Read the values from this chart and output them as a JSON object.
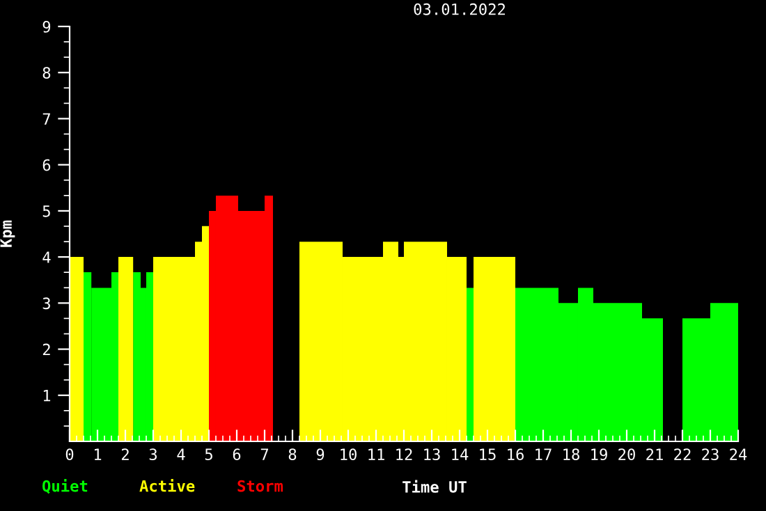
{
  "chart_data": {
    "type": "histogram",
    "title": "03.01.2022",
    "xlabel": "Time UT",
    "ylabel": "Kpm",
    "bins": [
      0,
      0.5,
      0.78,
      1.5,
      1.75,
      2.28,
      2.55,
      2.75,
      3,
      4.5,
      4.75,
      5,
      5.25,
      6.05,
      7,
      7.3,
      8.25,
      9.8,
      11.25,
      11.8,
      12,
      13.55,
      14.25,
      14.5,
      16,
      17.55,
      18.25,
      18.8,
      20.55,
      21.3,
      22,
      23,
      24
    ],
    "series": [
      {
        "name": "Quiet",
        "color": "#00ff00",
        "values": [
          null,
          3.67,
          3.33,
          3.67,
          null,
          3.67,
          3.33,
          3.67,
          null,
          null,
          null,
          null,
          null,
          null,
          null,
          null,
          null,
          null,
          null,
          null,
          null,
          null,
          3.33,
          null,
          3.33,
          3,
          3.33,
          3,
          2.67,
          null,
          2.67,
          3
        ]
      },
      {
        "name": "Active",
        "color": "#ffff00",
        "values": [
          4,
          null,
          null,
          null,
          4,
          null,
          null,
          null,
          4,
          4.33,
          4.67,
          null,
          null,
          null,
          null,
          null,
          4.33,
          4,
          4.33,
          4,
          4.33,
          4,
          null,
          4,
          null,
          null,
          null,
          null,
          null,
          null,
          null,
          null
        ]
      },
      {
        "name": "Storm",
        "color": "#ff0000",
        "values": [
          null,
          null,
          null,
          null,
          null,
          null,
          null,
          null,
          null,
          null,
          null,
          5,
          5.33,
          5,
          5.33,
          null,
          null,
          null,
          null,
          null,
          null,
          null,
          null,
          null,
          null,
          null,
          null,
          null,
          null,
          null,
          null,
          null
        ]
      }
    ],
    "xlim": [
      0,
      24
    ],
    "ylim": [
      0,
      9
    ],
    "xticks": [
      0,
      {
        "value": 0.25,
        "label": null
      },
      {
        "value": 0.5,
        "label": null
      },
      {
        "value": 0.75,
        "label": null
      },
      1,
      {
        "value": 1.25,
        "label": null
      },
      {
        "value": 1.5,
        "label": null
      },
      {
        "value": 1.75,
        "label": null
      },
      2,
      {
        "value": 2.25,
        "label": null
      },
      {
        "value": 2.5,
        "label": null
      },
      {
        "value": 2.75,
        "label": null
      },
      3,
      {
        "value": 3.25,
        "label": null
      },
      {
        "value": 3.5,
        "label": null
      },
      {
        "value": 3.75,
        "label": null
      },
      4,
      {
        "value": 4.25,
        "label": null
      },
      {
        "value": 4.5,
        "label": null
      },
      {
        "value": 4.75,
        "label": null
      },
      5,
      {
        "value": 5.25,
        "label": null
      },
      {
        "value": 5.5,
        "label": null
      },
      {
        "value": 5.75,
        "label": null
      },
      6,
      {
        "value": 6.25,
        "label": null
      },
      {
        "value": 6.5,
        "label": null
      },
      {
        "value": 6.75,
        "label": null
      },
      7,
      {
        "value": 7.25,
        "label": null
      },
      {
        "value": 7.5,
        "label": null
      },
      {
        "value": 7.75,
        "label": null
      },
      8,
      {
        "value": 8.25,
        "label": null
      },
      {
        "value": 8.5,
        "label": null
      },
      {
        "value": 8.75,
        "label": null
      },
      9,
      {
        "value": 9.25,
        "label": null
      },
      {
        "value": 9.5,
        "label": null
      },
      {
        "value": 9.75,
        "label": null
      },
      10,
      {
        "value": 10.25,
        "label": null
      },
      {
        "value": 10.5,
        "label": null
      },
      {
        "value": 10.75,
        "label": null
      },
      11,
      {
        "value": 11.25,
        "label": null
      },
      {
        "value": 11.5,
        "label": null
      },
      {
        "value": 11.75,
        "label": null
      },
      12,
      {
        "value": 12.25,
        "label": null
      },
      {
        "value": 12.5,
        "label": null
      },
      {
        "value": 12.75,
        "label": null
      },
      13,
      {
        "value": 13.25,
        "label": null
      },
      {
        "value": 13.5,
        "label": null
      },
      {
        "value": 13.75,
        "label": null
      },
      14,
      {
        "value": 14.25,
        "label": null
      },
      {
        "value": 14.5,
        "label": null
      },
      {
        "value": 14.75,
        "label": null
      },
      15,
      {
        "value": 15.25,
        "label": null
      },
      {
        "value": 15.5,
        "label": null
      },
      {
        "value": 15.75,
        "label": null
      },
      16,
      {
        "value": 16.25,
        "label": null
      },
      {
        "value": 16.5,
        "label": null
      },
      {
        "value": 16.75,
        "label": null
      },
      17,
      {
        "value": 17.25,
        "label": null
      },
      {
        "value": 17.5,
        "label": null
      },
      {
        "value": 17.75,
        "label": null
      },
      18,
      {
        "value": 18.25,
        "label": null
      },
      {
        "value": 18.5,
        "label": null
      },
      {
        "value": 18.75,
        "label": null
      },
      19,
      {
        "value": 19.25,
        "label": null
      },
      {
        "value": 19.5,
        "label": null
      },
      {
        "value": 19.75,
        "label": null
      },
      20,
      {
        "value": 20.25,
        "label": null
      },
      {
        "value": 20.5,
        "label": null
      },
      {
        "value": 20.75,
        "label": null
      },
      21,
      {
        "value": 21.25,
        "label": null
      },
      {
        "value": 21.5,
        "label": null
      },
      {
        "value": 21.75,
        "label": null
      },
      22,
      {
        "value": 22.25,
        "label": null
      },
      {
        "value": 22.5,
        "label": null
      },
      {
        "value": 22.75,
        "label": null
      },
      23,
      {
        "value": 23.25,
        "label": null
      },
      {
        "value": 23.5,
        "label": null
      },
      {
        "value": 23.75,
        "label": null
      },
      24
    ],
    "yticks": [
      {
        "value": 0.333,
        "label": null
      },
      {
        "value": 0.667,
        "label": null
      },
      1,
      {
        "value": 1.333,
        "label": null
      },
      {
        "value": 1.667,
        "label": null
      },
      2,
      {
        "value": 2.333,
        "label": null
      },
      {
        "value": 2.667,
        "label": null
      },
      3,
      {
        "value": 3.333,
        "label": null
      },
      {
        "value": 3.667,
        "label": null
      },
      4,
      {
        "value": 4.333,
        "label": null
      },
      {
        "value": 4.667,
        "label": null
      },
      5,
      {
        "value": 5.333,
        "label": null
      },
      {
        "value": 5.667,
        "label": null
      },
      6,
      {
        "value": 6.333,
        "label": null
      },
      {
        "value": 6.667,
        "label": null
      },
      7,
      {
        "value": 7.333,
        "label": null
      },
      {
        "value": 7.667,
        "label": null
      },
      8,
      {
        "value": 8.333,
        "label": null
      },
      {
        "value": 8.667,
        "label": null
      },
      9
    ],
    "grid": false,
    "legend": "bottom left"
  }
}
